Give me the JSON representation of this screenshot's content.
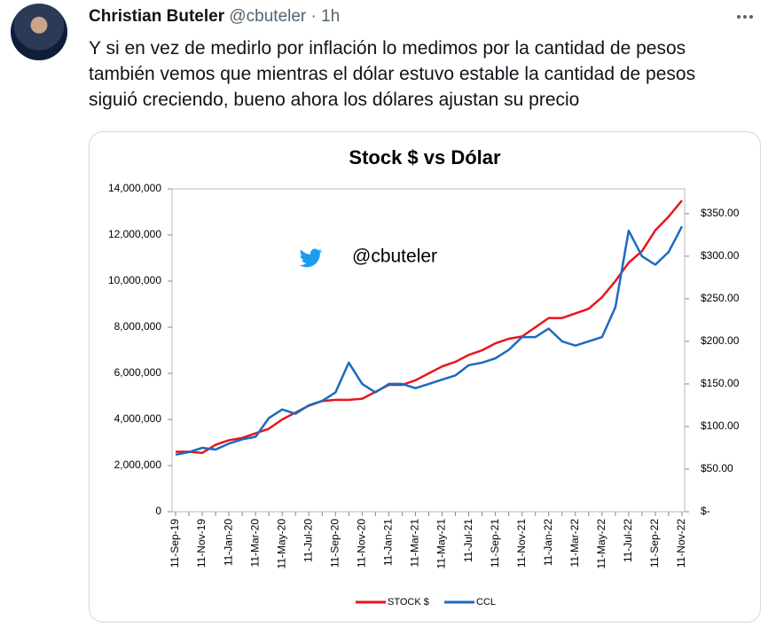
{
  "tweet": {
    "name": "Christian Buteler",
    "handle": "@cbuteler",
    "time": "1h",
    "text_lines": [
      "Y si en vez de medirlo por inflación lo medimos por la cantidad de pesos",
      "también vemos que mientras el dólar estuvo estable la cantidad de pesos",
      "siguió creciendo, bueno ahora los dólares ajustan su precio"
    ]
  },
  "chart_data": {
    "type": "line",
    "title": "Stock $ vs Dólar",
    "watermark": "@cbuteler",
    "categories": [
      "11-Sep-19",
      null,
      "11-Nov-19",
      null,
      "11-Jan-20",
      null,
      "11-Mar-20",
      null,
      "11-May-20",
      null,
      "11-Jul-20",
      null,
      "11-Sep-20",
      null,
      "11-Nov-20",
      null,
      "11-Jan-21",
      null,
      "11-Mar-21",
      null,
      "11-May-21",
      null,
      "11-Jul-21",
      null,
      "11-Sep-21",
      null,
      "11-Nov-21",
      null,
      "11-Jan-22",
      null,
      "11-Mar-22",
      null,
      "11-May-22",
      null,
      "11-Jul-22",
      null,
      "11-Sep-22",
      null,
      "11-Nov-22"
    ],
    "series": [
      {
        "name": "STOCK $",
        "color": "#e8141c",
        "values": [
          2600000,
          2600000,
          2550000,
          2900000,
          3100000,
          3200000,
          3400000,
          3600000,
          4000000,
          4300000,
          4600000,
          4800000,
          4850000,
          4850000,
          4900000,
          5200000,
          5500000,
          5500000,
          5700000,
          6000000,
          6300000,
          6500000,
          6800000,
          7000000,
          7300000,
          7500000,
          7600000,
          8000000,
          8400000,
          8400000,
          8600000,
          8800000,
          9300000,
          10000000,
          10800000,
          11300000,
          12200000,
          12800000,
          13500000
        ]
      },
      {
        "name": "CCL",
        "color": "#1a6bbf",
        "axis": "y2",
        "values": [
          67,
          70,
          75,
          73,
          80,
          85,
          88,
          110,
          120,
          115,
          125,
          130,
          140,
          175,
          150,
          140,
          150,
          150,
          145,
          150,
          155,
          160,
          172,
          175,
          180,
          190,
          205,
          205,
          215,
          200,
          195,
          200,
          205,
          240,
          330,
          300,
          290,
          305,
          335
        ]
      }
    ],
    "ylim": [
      0,
      14000000
    ],
    "yticks": [
      0,
      {
        "value": 2000000,
        "label": "2,000,000"
      },
      {
        "value": 4000000,
        "label": "4,000,000"
      },
      {
        "value": 6000000,
        "label": "6,000,000"
      },
      {
        "value": 8000000,
        "label": "8,000,000"
      },
      {
        "value": 10000000,
        "label": "10,000,000"
      },
      {
        "value": 12000000,
        "label": "12,000,000"
      },
      {
        "value": 14000000,
        "label": "14,000,000"
      }
    ],
    "y2lim": [
      0,
      379
    ],
    "y2ticks": [
      {
        "value": 0,
        "label": "$-"
      },
      {
        "value": 50,
        "label": "$50.00"
      },
      {
        "value": 100,
        "label": "$100.00"
      },
      {
        "value": 150,
        "label": "$150.00"
      },
      {
        "value": 200,
        "label": "$200.00"
      },
      {
        "value": 250,
        "label": "$250.00"
      },
      {
        "value": 300,
        "label": "$300.00"
      },
      {
        "value": 350,
        "label": "$350.00"
      }
    ],
    "legend": "bottom"
  }
}
